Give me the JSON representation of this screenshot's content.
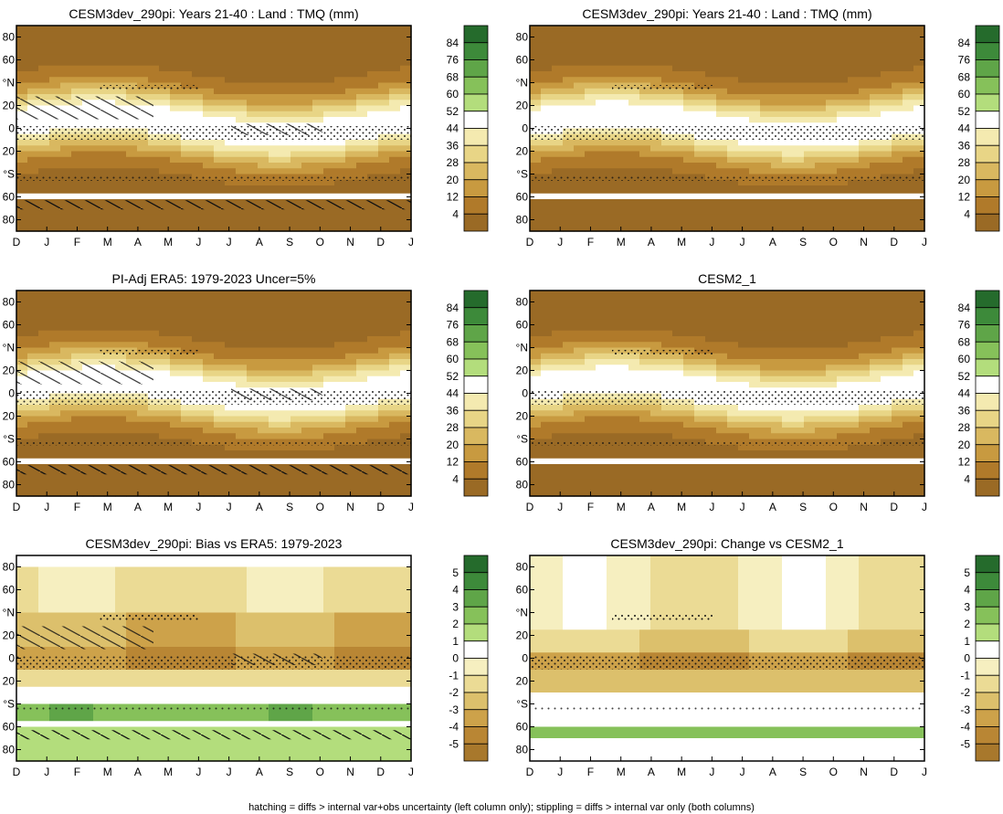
{
  "footnote": "hatching = diffs > internal var+obs uncertainty (left column only); stippling = diffs > internal var only (both columns)",
  "chart_data": [
    {
      "type": "heatmap",
      "title": "CESM3dev_290pi: Years 21-40 : Land : TMQ (mm)",
      "kind": "abs",
      "variant": "model",
      "x_ticks": [
        "D",
        "J",
        "F",
        "M",
        "A",
        "M",
        "J",
        "J",
        "A",
        "S",
        "O",
        "N",
        "D",
        "J"
      ],
      "y_ticks": [
        "80",
        "60",
        "°N",
        "20",
        "0",
        "20",
        "°S",
        "60",
        "80"
      ],
      "colorbar": [
        "84",
        "76",
        "68",
        "60",
        "52",
        "44",
        "36",
        "28",
        "20",
        "12",
        "4"
      ],
      "hatching": true,
      "stippling": true
    },
    {
      "type": "heatmap",
      "title": "CESM3dev_290pi: Years 21-40 : Land : TMQ (mm)",
      "kind": "abs",
      "variant": "model",
      "x_ticks": [
        "D",
        "J",
        "F",
        "M",
        "A",
        "M",
        "J",
        "J",
        "A",
        "S",
        "O",
        "N",
        "D",
        "J"
      ],
      "y_ticks": [
        "80",
        "60",
        "°N",
        "20",
        "0",
        "20",
        "°S",
        "60",
        "80"
      ],
      "colorbar": [
        "84",
        "76",
        "68",
        "60",
        "52",
        "44",
        "36",
        "28",
        "20",
        "12",
        "4"
      ],
      "hatching": false,
      "stippling": true
    },
    {
      "type": "heatmap",
      "title": "PI-Adj ERA5: 1979-2023 Uncer=5%",
      "kind": "abs",
      "variant": "obs",
      "x_ticks": [
        "D",
        "J",
        "F",
        "M",
        "A",
        "M",
        "J",
        "J",
        "A",
        "S",
        "O",
        "N",
        "D",
        "J"
      ],
      "y_ticks": [
        "80",
        "60",
        "°N",
        "20",
        "0",
        "20",
        "°S",
        "60",
        "80"
      ],
      "colorbar": [
        "84",
        "76",
        "68",
        "60",
        "52",
        "44",
        "36",
        "28",
        "20",
        "12",
        "4"
      ],
      "hatching": true,
      "stippling": true
    },
    {
      "type": "heatmap",
      "title": "CESM2_1",
      "kind": "abs",
      "variant": "model",
      "x_ticks": [
        "D",
        "J",
        "F",
        "M",
        "A",
        "M",
        "J",
        "J",
        "A",
        "S",
        "O",
        "N",
        "D",
        "J"
      ],
      "y_ticks": [
        "80",
        "60",
        "°N",
        "20",
        "0",
        "20",
        "°S",
        "60",
        "80"
      ],
      "colorbar": [
        "84",
        "76",
        "68",
        "60",
        "52",
        "44",
        "36",
        "28",
        "20",
        "12",
        "4"
      ],
      "hatching": false,
      "stippling": true
    },
    {
      "type": "heatmap",
      "title": "CESM3dev_290pi: Bias vs ERA5: 1979-2023",
      "kind": "diff",
      "variant": "bias",
      "x_ticks": [
        "D",
        "J",
        "F",
        "M",
        "A",
        "M",
        "J",
        "J",
        "A",
        "S",
        "O",
        "N",
        "D",
        "J"
      ],
      "y_ticks": [
        "80",
        "60",
        "°N",
        "20",
        "0",
        "20",
        "°S",
        "60",
        "80"
      ],
      "colorbar": [
        "5",
        "4",
        "3",
        "2",
        "1",
        "0",
        "-1",
        "-2",
        "-3",
        "-4",
        "-5"
      ],
      "hatching": true,
      "stippling": true
    },
    {
      "type": "heatmap",
      "title": "CESM3dev_290pi: Change vs CESM2_1",
      "kind": "diff",
      "variant": "change",
      "x_ticks": [
        "D",
        "J",
        "F",
        "M",
        "A",
        "M",
        "J",
        "J",
        "A",
        "S",
        "O",
        "N",
        "D",
        "J"
      ],
      "y_ticks": [
        "80",
        "60",
        "°N",
        "20",
        "0",
        "20",
        "°S",
        "60",
        "80"
      ],
      "colorbar": [
        "5",
        "4",
        "3",
        "2",
        "1",
        "0",
        "-1",
        "-2",
        "-3",
        "-4",
        "-5"
      ],
      "hatching": false,
      "stippling": true
    }
  ],
  "colors": {
    "abs": [
      "#256b2c",
      "#3d8a3a",
      "#5fa548",
      "#86c15a",
      "#b3dd7c",
      "#ffffff",
      "#f4eab0",
      "#e8d586",
      "#d9b860",
      "#c89a40",
      "#b07a2a",
      "#9a6a25"
    ],
    "diff_pos": [
      "#256b2c",
      "#3d8a3a",
      "#5fa548",
      "#86c15a",
      "#b3dd7c"
    ],
    "diff_neg": [
      "#f6efc0",
      "#ebdb95",
      "#dcc06c",
      "#cda24a",
      "#b98634",
      "#a8782c"
    ]
  }
}
